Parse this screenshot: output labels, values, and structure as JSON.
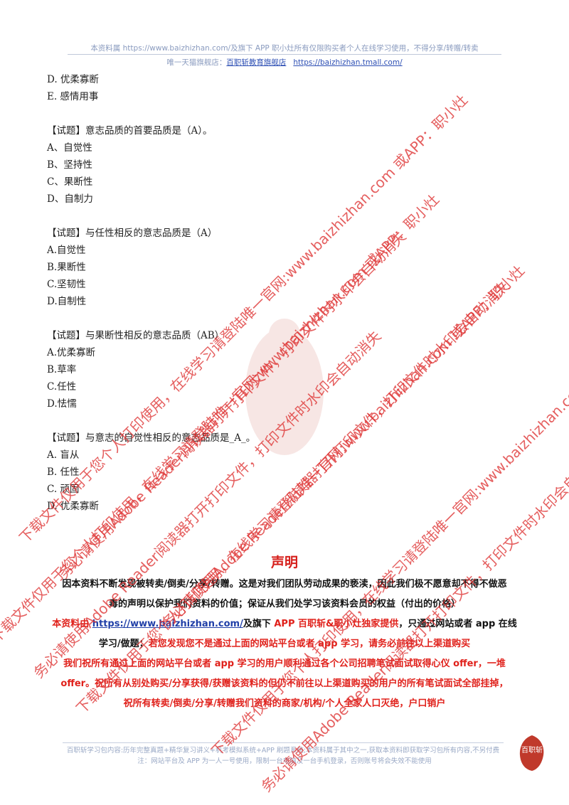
{
  "header": {
    "line1": "本资料属 https://www.baizhizhan.com/及旗下 APP 职小灶所有仅限购买者个人在线学习使用，不得分享/转赠/转卖",
    "line2_prefix": "唯一天猫旗舰店：",
    "line2_store": "百职斩教育旗舰店",
    "line2_url": "https://baizhizhan.tmall.com/"
  },
  "content": {
    "blocks": [
      {
        "lines": [
          "D. 优柔寡断",
          "E. 感情用事"
        ]
      },
      {
        "lines": [
          "【试题】意志品质的首要品质是（A）。",
          "A、自觉性",
          "B、坚持性",
          "C、果断性",
          "D、自制力"
        ]
      },
      {
        "lines": [
          "【试题】与任性相反的意志品质是（A）",
          "A.自觉性",
          "B.果断性",
          "C.坚韧性",
          "D.自制性"
        ]
      },
      {
        "lines": [
          "【试题】与果断性相反的意志品质（AB）",
          "A.优柔寡断",
          "B.草率",
          "C.任性",
          "D.怯懦"
        ]
      },
      {
        "lines": [
          "【试题】与意志的自觉性相反的意志品质是_A_。",
          "A. 盲从",
          "B. 任性",
          "C. 顽固",
          "D. 优柔寡断"
        ]
      }
    ]
  },
  "notice": {
    "title": "声明",
    "line1": "因本资料不断发现被转卖/倒卖/分享/转赠。这是对我们团队劳动成果的亵渎，因此我们极不愿意却不得不做恶",
    "line2": "毒的声明以保护我们资料的价值；保证从我们处学习该资料会员的权益（付出的价格）",
    "line3_a": "本资料由 ",
    "line3_url": "https://www.baizhizhan.com/",
    "line3_b": "及旗下 ",
    "line3_c": "APP 百职斩&职小灶独家提供",
    "line3_d": "，只通过网站或者 app 在线",
    "line4_a": "学习/做题；",
    "line4_b": "若您发现您不是通过上面的网站平台或者 app 学习，请务必前往以上渠道购买",
    "line5": "我们祝所有通过上面的网站平台或者 app 学习的用户顺利通过各个公司招聘笔试面试取得心仪 offer，一堆",
    "line6": "offer。祝所有从别处购买/分享获得/获赠该资料的但仍不前往以上渠道购买的用户的所有笔试面试全部挂掉，",
    "line7": "祝所有转卖/倒卖/分享/转赠我们资料的商家/机构/个人全家人口灭绝，户口销户"
  },
  "footer": {
    "line1": "百职斩学习包内容:历年完整真题+精华复习讲义+机考模拟系统+APP 刷题系统;本资料属于其中之一,获取本资料即获取学习包所有内容,不另付费",
    "line2": "注：网站平台及 APP 为一人一号使用，限制一台电脑及一台手机登录，否则账号将会失效不能使用"
  },
  "logo": {
    "text": "百职斩",
    "color": "#c0392b"
  },
  "watermark": {
    "text_a": "下载文件仅用于您个人打印使用，在线学习请登陆唯一官网:www.baizhizhan.com 或APP：职小灶",
    "text_b": "务必请使用Adobe Reader阅读器打开打印文件，打印文件时水印会自动消失",
    "color": "#de3232"
  }
}
